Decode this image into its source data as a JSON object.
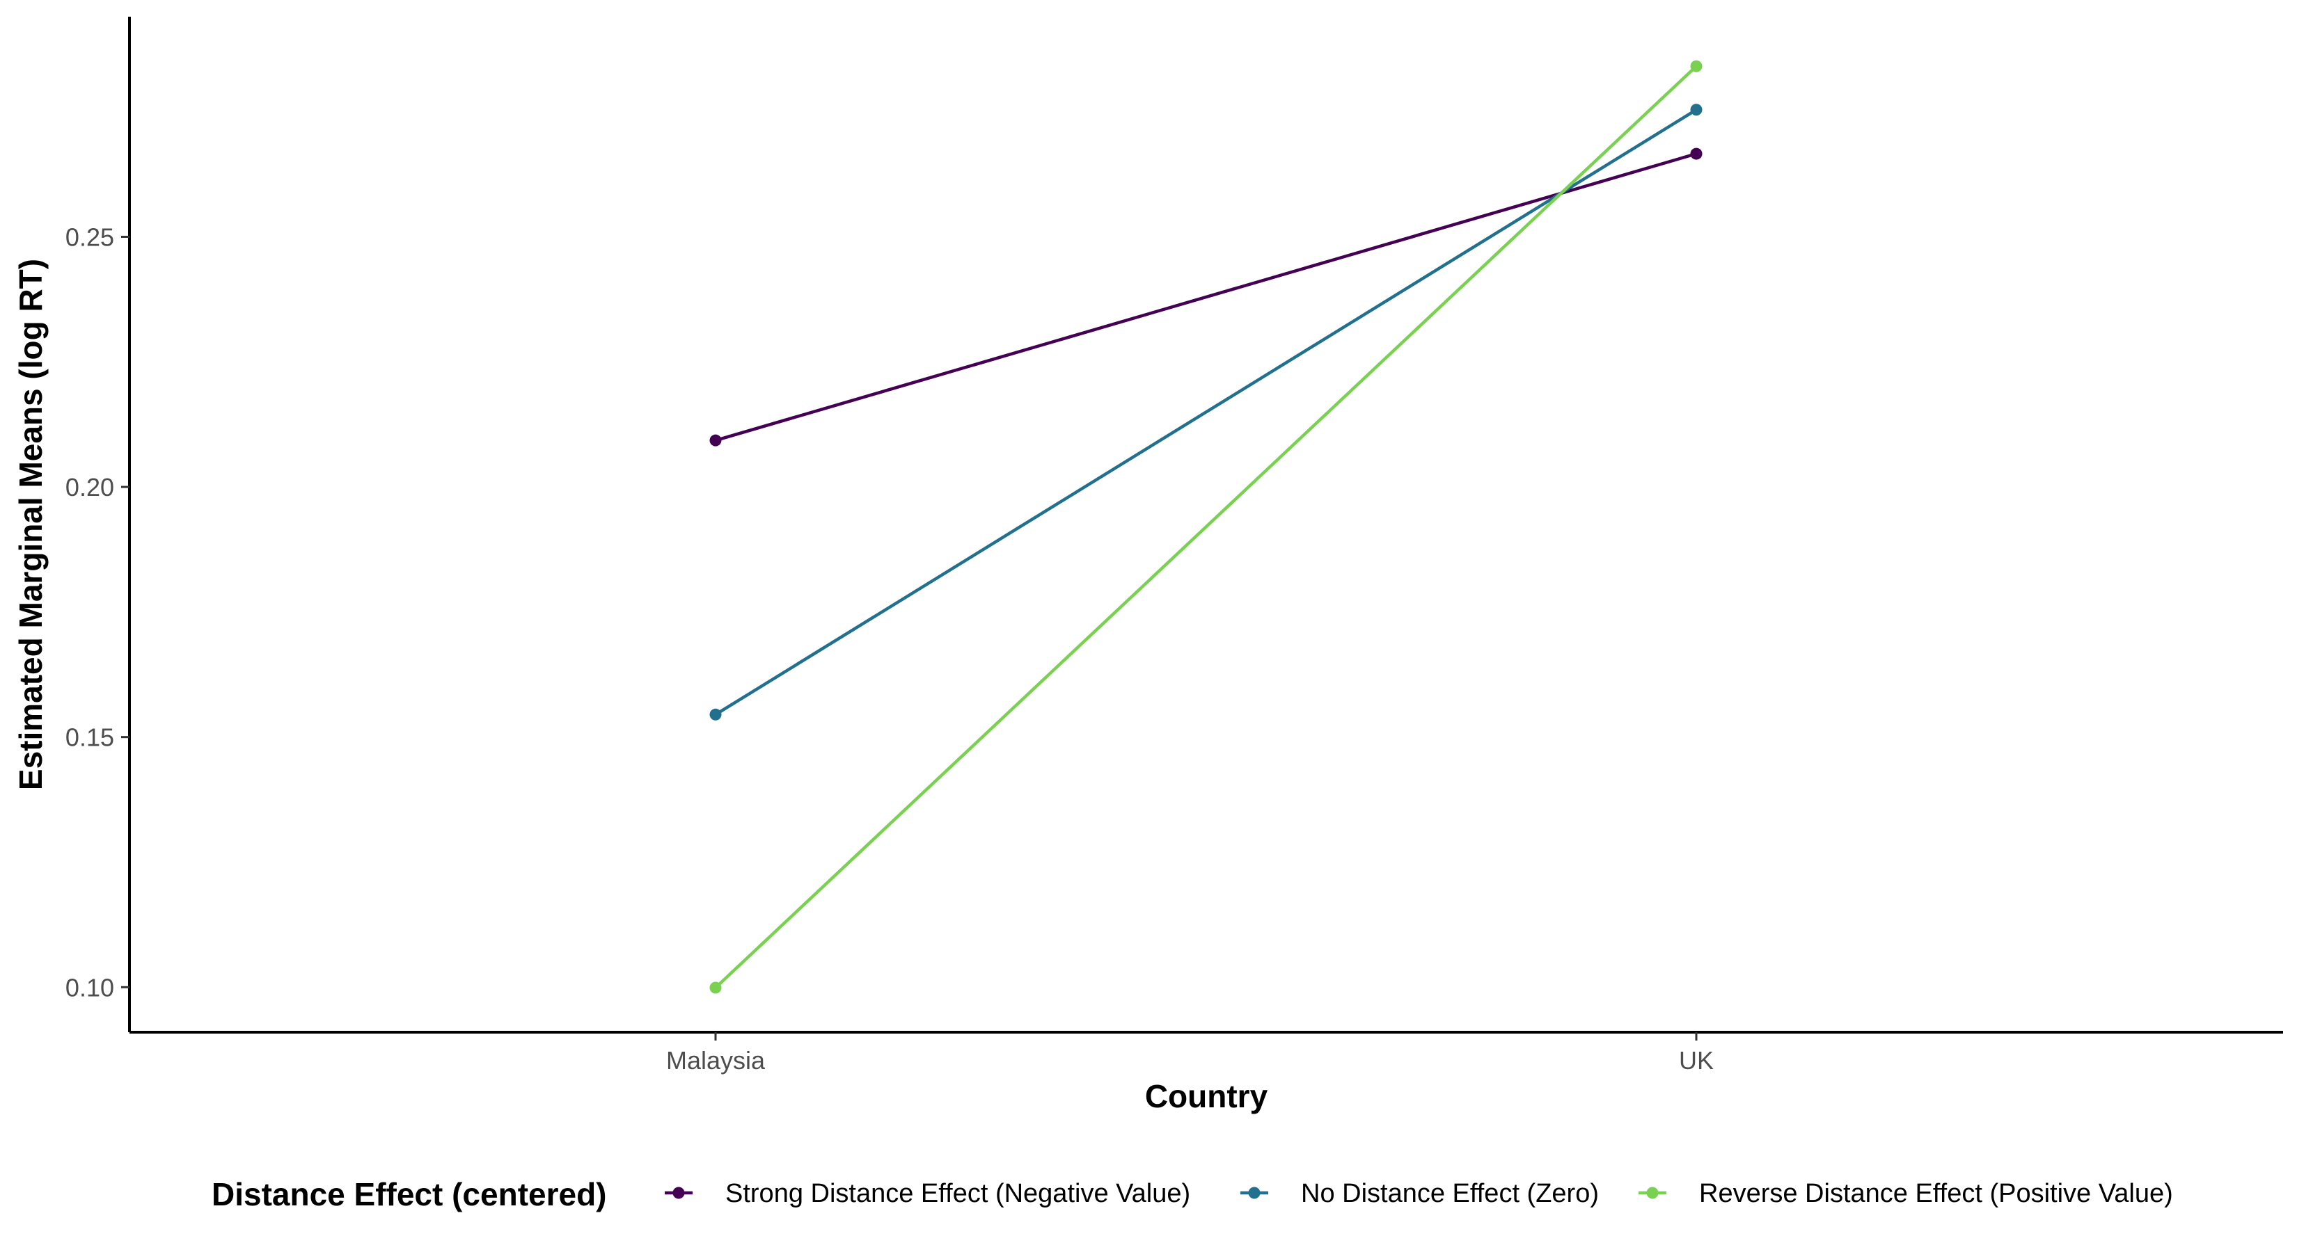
{
  "chart_data": {
    "type": "line",
    "title": "",
    "xlabel": "Country",
    "ylabel": "Estimated Marginal Means (log RT)",
    "categories": [
      "Malaysia",
      "UK"
    ],
    "ylim": [
      0.091,
      0.294
    ],
    "yticks": [
      0.1,
      0.15,
      0.2,
      0.25
    ],
    "ytick_labels": [
      "0.10",
      "0.15",
      "0.20",
      "0.25"
    ],
    "grid": false,
    "legend": {
      "title": "Distance Effect (centered)",
      "position": "bottom"
    },
    "series": [
      {
        "name": "Strong Distance Effect (Negative Value)",
        "color": "#440154",
        "values": [
          0.2093,
          0.2666
        ]
      },
      {
        "name": "No Distance Effect (Zero)",
        "color": "#21708E",
        "values": [
          0.1545,
          0.2754
        ]
      },
      {
        "name": "Reverse Distance Effect (Positive Value)",
        "color": "#7AD151",
        "values": [
          0.0999,
          0.2841
        ]
      }
    ]
  }
}
